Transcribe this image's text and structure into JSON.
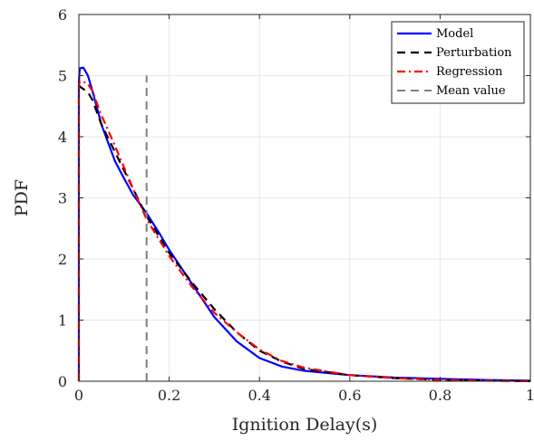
{
  "chart_data": {
    "type": "line",
    "title": "",
    "xlabel": "Ignition Delay(s)",
    "ylabel": "PDF",
    "xlim": [
      0,
      1
    ],
    "ylim": [
      0,
      6
    ],
    "xticks": [
      0,
      0.2,
      0.4,
      0.6,
      0.8,
      1
    ],
    "yticks": [
      0,
      1,
      2,
      3,
      4,
      5,
      6
    ],
    "xtick_labels": [
      "0",
      "0.2",
      "0.4",
      "0.6",
      "0.8",
      "1"
    ],
    "ytick_labels": [
      "0",
      "1",
      "2",
      "3",
      "4",
      "5",
      "6"
    ],
    "grid": true,
    "legend_position": "top-right",
    "series": [
      {
        "name": "Model",
        "color": "#0000ff",
        "style": "solid",
        "x": [
          0,
          0,
          0.002,
          0.01,
          0.02,
          0.03,
          0.05,
          0.08,
          0.1,
          0.12,
          0.15,
          0.18,
          0.2,
          0.25,
          0.3,
          0.35,
          0.4,
          0.45,
          0.5,
          0.6,
          0.7,
          0.8,
          0.9,
          1.0
        ],
        "y": [
          0,
          4.9,
          5.12,
          5.13,
          5.0,
          4.75,
          4.2,
          3.6,
          3.32,
          3.05,
          2.75,
          2.4,
          2.15,
          1.6,
          1.05,
          0.65,
          0.38,
          0.24,
          0.17,
          0.1,
          0.06,
          0.04,
          0.02,
          0.01
        ]
      },
      {
        "name": "Perturbation",
        "color": "#000000",
        "style": "dashed",
        "x": [
          0,
          0.002,
          0.02,
          0.03,
          0.05,
          0.08,
          0.1,
          0.12,
          0.15,
          0.2,
          0.25,
          0.3,
          0.35,
          0.4,
          0.45,
          0.5,
          0.6,
          0.7,
          0.8,
          0.9,
          1.0
        ],
        "y": [
          4.85,
          4.82,
          4.73,
          4.6,
          4.2,
          3.75,
          3.45,
          3.15,
          2.7,
          2.1,
          1.62,
          1.18,
          0.8,
          0.5,
          0.32,
          0.2,
          0.1,
          0.05,
          0.02,
          0.01,
          0.0
        ]
      },
      {
        "name": "Regression",
        "color": "#ff0000",
        "style": "dash-dot",
        "x": [
          0,
          0,
          0.002,
          0.01,
          0.02,
          0.03,
          0.05,
          0.08,
          0.1,
          0.12,
          0.15,
          0.2,
          0.25,
          0.3,
          0.35,
          0.4,
          0.45,
          0.5,
          0.6,
          0.7,
          0.8,
          0.9,
          1.0
        ],
        "y": [
          0,
          4.85,
          4.91,
          4.9,
          4.86,
          4.75,
          4.35,
          3.85,
          3.5,
          3.15,
          2.65,
          2.05,
          1.55,
          1.12,
          0.8,
          0.52,
          0.33,
          0.22,
          0.1,
          0.05,
          0.02,
          0.01,
          0.0
        ]
      },
      {
        "name": "Mean value",
        "color": "#808080",
        "style": "dashed",
        "x": [
          0.15,
          0.15
        ],
        "y": [
          0,
          5.0
        ]
      }
    ]
  }
}
